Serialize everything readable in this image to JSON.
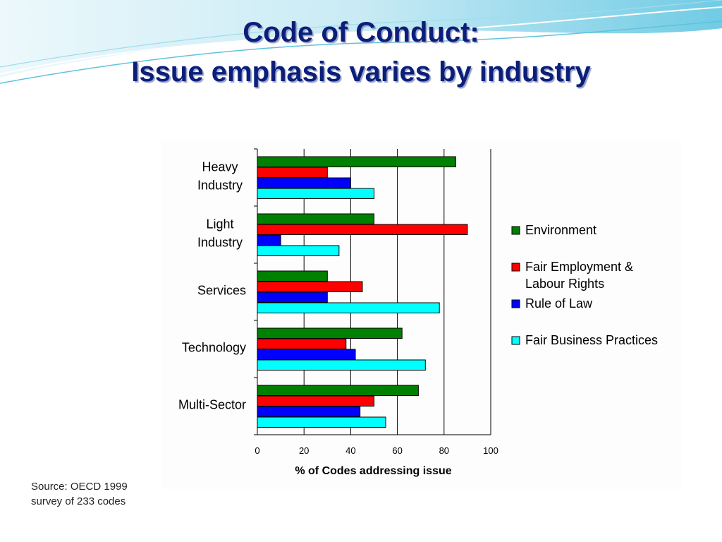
{
  "slide": {
    "title_line1": "Code of Conduct:",
    "title_line2": "Issue emphasis varies by industry",
    "source_line1": "Source:  OECD 1999",
    "source_line2": "survey of 233 codes"
  },
  "chart_data": {
    "type": "bar",
    "orientation": "horizontal",
    "categories": [
      [
        "Heavy",
        "Industry"
      ],
      [
        "Light",
        "Industry"
      ],
      [
        "Services"
      ],
      [
        "Technology"
      ],
      [
        "Multi-Sector"
      ]
    ],
    "series": [
      {
        "name": [
          "Environment"
        ],
        "color": "#008000",
        "values": [
          85,
          50,
          30,
          62,
          69
        ]
      },
      {
        "name": [
          "Fair Employment &",
          "Labour Rights"
        ],
        "color": "#ff0000",
        "values": [
          30,
          90,
          45,
          38,
          50
        ]
      },
      {
        "name": [
          "Rule of Law"
        ],
        "color": "#0000ff",
        "values": [
          40,
          10,
          30,
          42,
          44
        ]
      },
      {
        "name": [
          "Fair Business Practices"
        ],
        "color": "#00ffff",
        "values": [
          50,
          35,
          78,
          72,
          55
        ]
      }
    ],
    "xlabel": "% of Codes addressing issue",
    "xlim": [
      0,
      100
    ],
    "xticks": [
      0,
      20,
      40,
      60,
      80,
      100
    ],
    "grid": true,
    "legend_position": "right"
  }
}
